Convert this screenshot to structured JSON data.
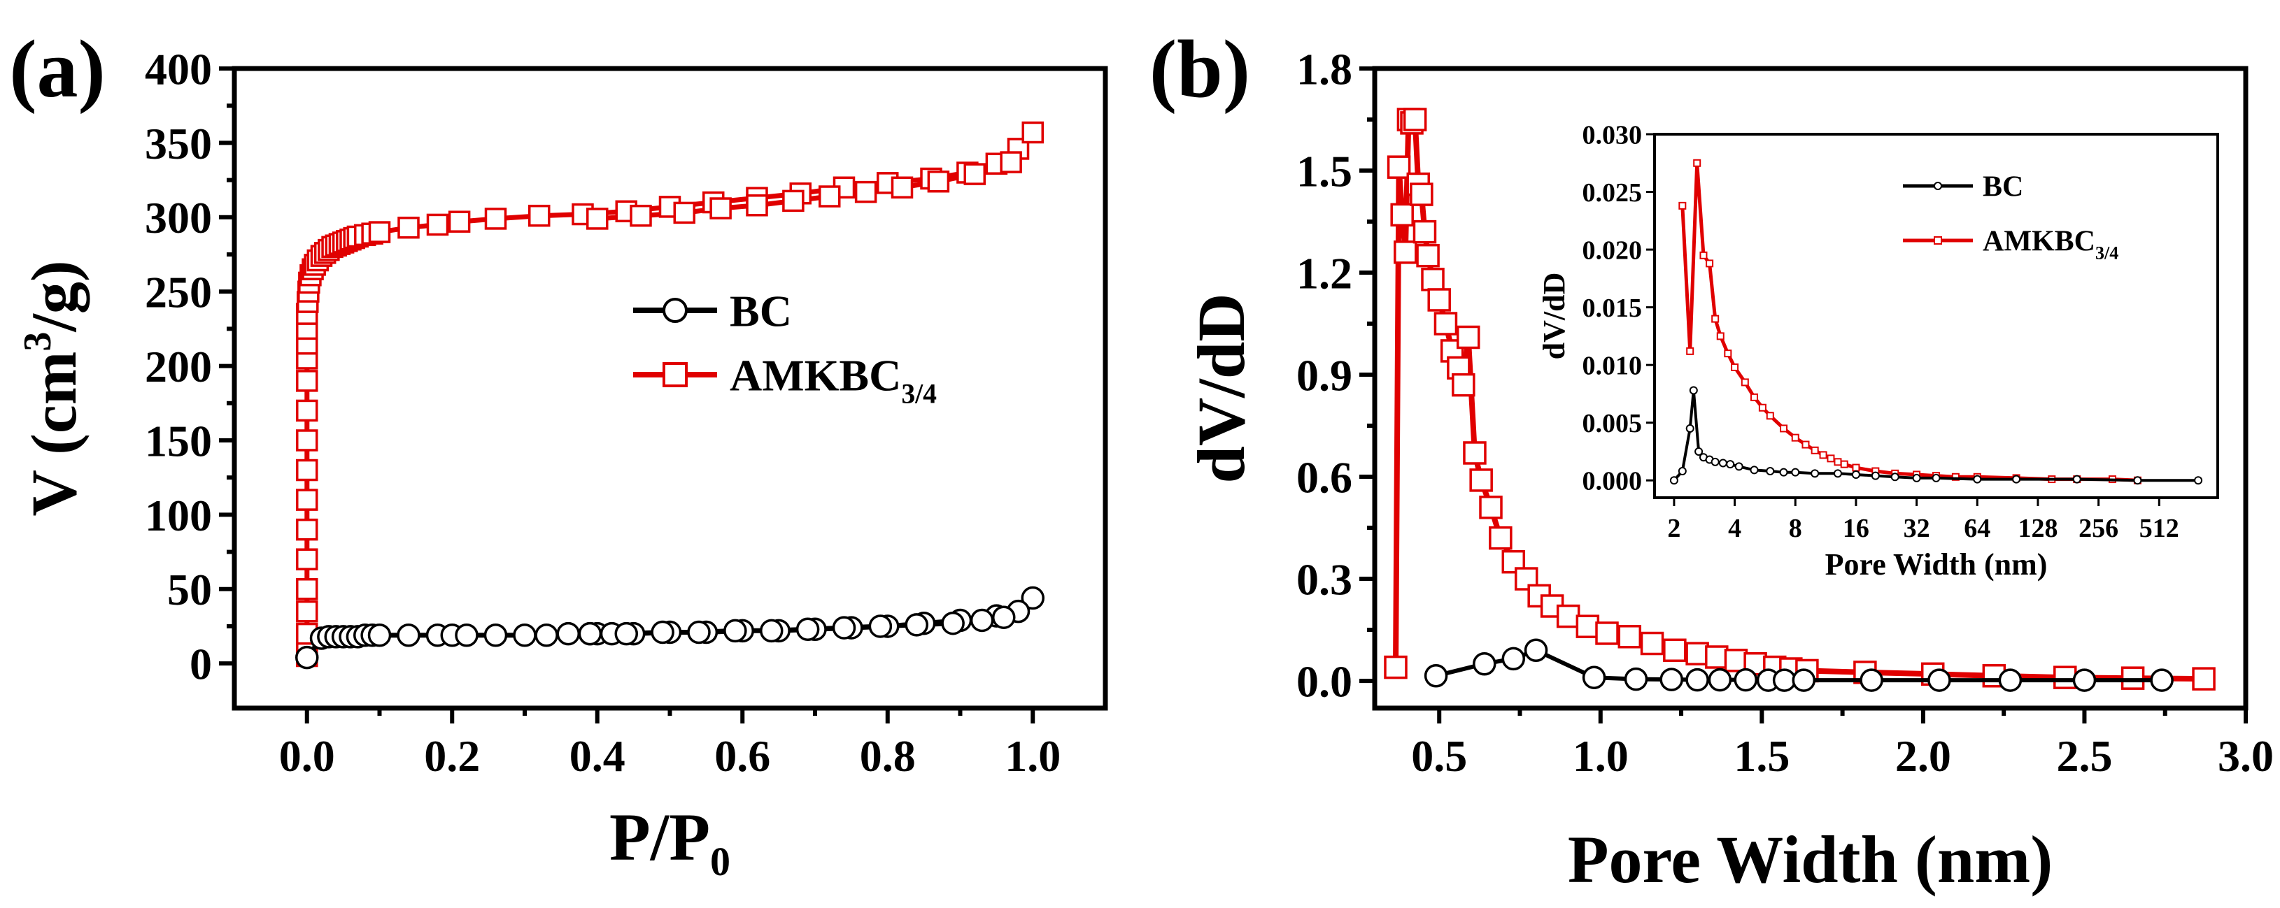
{
  "colors": {
    "bc": "#000000",
    "amkbc": "#e00000",
    "axis": "#000000",
    "background": "#ffffff"
  },
  "chart_data": [
    {
      "id": "a",
      "type": "scatter",
      "panel_label": "(a)",
      "xlabel": {
        "main": "P/P",
        "sub": "0"
      },
      "ylabel": {
        "main": "V (cm",
        "sup": "3",
        "tail": "/g)"
      },
      "xlim": [
        -0.1,
        1.1
      ],
      "ylim": [
        -30,
        400
      ],
      "xticks": [
        0.0,
        0.2,
        0.4,
        0.6,
        0.8,
        1.0
      ],
      "xtick_labels": [
        "0.0",
        "0.2",
        "0.4",
        "0.6",
        "0.8",
        "1.0"
      ],
      "yticks": [
        0,
        50,
        100,
        150,
        200,
        250,
        300,
        350,
        400
      ],
      "ytick_labels": [
        "0",
        "50",
        "100",
        "150",
        "200",
        "250",
        "300",
        "350",
        "400"
      ],
      "legend": {
        "position": "center-right",
        "entries": [
          {
            "label": "BC",
            "series": 0
          },
          {
            "label": "AMKBC",
            "sub": "3/4",
            "series": 1
          }
        ]
      },
      "series": [
        {
          "name": "BC",
          "marker": "circle",
          "color": "#000000",
          "x": [
            0.0,
            0.02,
            0.03,
            0.04,
            0.05,
            0.06,
            0.07,
            0.08,
            0.09,
            0.1,
            0.14,
            0.18,
            0.2,
            0.22,
            0.26,
            0.3,
            0.33,
            0.36,
            0.39,
            0.4,
            0.42,
            0.45,
            0.5,
            0.55,
            0.6,
            0.65,
            0.7,
            0.75,
            0.8,
            0.85,
            0.9,
            0.95,
            1.0,
            0.98,
            0.96,
            0.93,
            0.89,
            0.84,
            0.79,
            0.74,
            0.69,
            0.64,
            0.59,
            0.54,
            0.49,
            0.44,
            0.39
          ],
          "values": [
            4,
            17,
            18,
            18,
            18,
            18,
            18,
            19,
            19,
            19,
            19,
            19,
            19,
            19,
            19,
            19,
            19,
            20,
            20,
            20,
            20,
            20,
            21,
            21,
            22,
            22,
            23,
            24,
            25,
            27,
            29,
            32,
            44,
            35,
            31,
            29,
            27,
            26,
            25,
            24,
            23,
            22,
            22,
            21,
            21,
            20,
            20
          ]
        },
        {
          "name": "AMKBC3/4",
          "marker": "square",
          "color": "#e00000",
          "x": [
            0.0,
            0.0,
            0.0,
            0.0,
            0.0,
            0.0,
            0.0,
            0.0,
            0.0,
            0.0,
            0.0,
            0.0,
            0.0,
            0.0,
            0.0,
            0.0,
            0.001,
            0.002,
            0.003,
            0.005,
            0.008,
            0.011,
            0.015,
            0.02,
            0.025,
            0.03,
            0.035,
            0.04,
            0.045,
            0.05,
            0.055,
            0.06,
            0.065,
            0.07,
            0.08,
            0.09,
            0.1,
            0.14,
            0.18,
            0.21,
            0.26,
            0.32,
            0.38,
            0.44,
            0.5,
            0.56,
            0.62,
            0.68,
            0.74,
            0.8,
            0.86,
            0.91,
            0.95,
            0.98,
            1.0,
            0.97,
            0.92,
            0.87,
            0.82,
            0.77,
            0.72,
            0.67,
            0.62,
            0.57,
            0.52,
            0.46,
            0.4
          ],
          "values": [
            5,
            10,
            20,
            35,
            50,
            70,
            90,
            110,
            130,
            150,
            170,
            190,
            205,
            215,
            225,
            235,
            243,
            250,
            256,
            261,
            265,
            268,
            271,
            274,
            276,
            278,
            280,
            281,
            282,
            283,
            284,
            285,
            286,
            287,
            288,
            289,
            290,
            293,
            295,
            297,
            299,
            301,
            302,
            304,
            307,
            310,
            313,
            316,
            320,
            323,
            326,
            330,
            336,
            346,
            357,
            337,
            329,
            324,
            320,
            317,
            314,
            311,
            308,
            306,
            303,
            301,
            299
          ]
        }
      ]
    },
    {
      "id": "b",
      "type": "line",
      "panel_label": "(b)",
      "xlabel": "Pore Width (nm)",
      "ylabel": "dV/dD",
      "xlim": [
        0.3,
        3.0
      ],
      "ylim": [
        -0.08,
        1.8
      ],
      "xticks": [
        0.5,
        1.0,
        1.5,
        2.0,
        2.5,
        3.0
      ],
      "xtick_labels": [
        "0.5",
        "1.0",
        "1.5",
        "2.0",
        "2.5",
        "3.0"
      ],
      "yticks": [
        0.0,
        0.3,
        0.6,
        0.9,
        1.2,
        1.5,
        1.8
      ],
      "ytick_labels": [
        "0.0",
        "0.3",
        "0.6",
        "0.9",
        "1.2",
        "1.5",
        "1.8"
      ],
      "series": [
        {
          "name": "BC",
          "marker": "circle",
          "color": "#000000",
          "x": [
            0.49,
            0.64,
            0.73,
            0.8,
            0.98,
            1.11,
            1.22,
            1.3,
            1.37,
            1.45,
            1.52,
            1.57,
            1.63,
            1.84,
            2.05,
            2.27,
            2.5,
            2.74
          ],
          "values": [
            0.015,
            0.05,
            0.065,
            0.09,
            0.01,
            0.005,
            0.004,
            0.003,
            0.003,
            0.003,
            0.002,
            0.002,
            0.002,
            0.002,
            0.002,
            0.002,
            0.002,
            0.002
          ]
        },
        {
          "name": "AMKBC3/4",
          "marker": "square",
          "color": "#e00000",
          "x": [
            0.365,
            0.375,
            0.385,
            0.395,
            0.405,
            0.415,
            0.425,
            0.435,
            0.445,
            0.455,
            0.465,
            0.48,
            0.5,
            0.52,
            0.54,
            0.56,
            0.575,
            0.59,
            0.61,
            0.63,
            0.66,
            0.69,
            0.73,
            0.77,
            0.81,
            0.85,
            0.9,
            0.96,
            1.02,
            1.09,
            1.16,
            1.23,
            1.3,
            1.36,
            1.42,
            1.48,
            1.54,
            1.59,
            1.64,
            1.82,
            2.03,
            2.22,
            2.44,
            2.65,
            2.87
          ],
          "values": [
            0.04,
            1.51,
            1.37,
            1.26,
            1.65,
            1.64,
            1.65,
            1.46,
            1.43,
            1.32,
            1.25,
            1.18,
            1.12,
            1.05,
            0.97,
            0.92,
            0.87,
            1.01,
            0.67,
            0.59,
            0.51,
            0.42,
            0.35,
            0.3,
            0.25,
            0.22,
            0.19,
            0.16,
            0.14,
            0.13,
            0.11,
            0.09,
            0.08,
            0.07,
            0.06,
            0.05,
            0.04,
            0.035,
            0.03,
            0.025,
            0.02,
            0.015,
            0.01,
            0.008,
            0.006
          ]
        }
      ]
    },
    {
      "id": "b-inset",
      "type": "line",
      "xlabel": "Pore Width (nm)",
      "ylabel": "dV/dD",
      "xscale": "log2",
      "xlim": [
        1.6,
        1000
      ],
      "ylim": [
        -0.0015,
        0.03
      ],
      "xticks": [
        2,
        4,
        8,
        16,
        32,
        64,
        128,
        256,
        512
      ],
      "xtick_labels": [
        "2",
        "4",
        "8",
        "16",
        "32",
        "64",
        "128",
        "256",
        "512"
      ],
      "yticks": [
        0.0,
        0.005,
        0.01,
        0.015,
        0.02,
        0.025,
        0.03
      ],
      "ytick_labels": [
        "0.000",
        "0.005",
        "0.010",
        "0.015",
        "0.020",
        "0.025",
        "0.030"
      ],
      "legend": {
        "position": "top-left",
        "entries": [
          {
            "label": "BC",
            "series": 0
          },
          {
            "label": "AMKBC",
            "sub": "3/4",
            "series": 1
          }
        ]
      },
      "series": [
        {
          "name": "BC",
          "marker": "circle",
          "color": "#000000",
          "x": [
            2.0,
            2.2,
            2.4,
            2.5,
            2.65,
            2.8,
            3.0,
            3.2,
            3.5,
            3.8,
            4.2,
            5.0,
            6.0,
            7.0,
            8.0,
            10,
            13,
            16,
            20,
            25,
            32,
            40,
            64,
            100,
            200,
            400,
            800
          ],
          "values": [
            0.0,
            0.0008,
            0.0045,
            0.0078,
            0.0025,
            0.002,
            0.0018,
            0.0016,
            0.0015,
            0.0014,
            0.0012,
            0.0009,
            0.0008,
            0.0007,
            0.0007,
            0.0006,
            0.0006,
            0.0005,
            0.0004,
            0.0003,
            0.0002,
            0.0002,
            0.0001,
            0.0001,
            0.0001,
            0.0,
            0.0
          ]
        },
        {
          "name": "AMKBC3/4",
          "marker": "square",
          "color": "#e00000",
          "x": [
            2.2,
            2.4,
            2.6,
            2.8,
            3.0,
            3.2,
            3.4,
            3.7,
            4.0,
            4.5,
            5.0,
            5.5,
            6.0,
            7.0,
            8.0,
            9.0,
            10,
            11,
            12,
            13,
            14,
            16,
            20,
            25,
            32,
            40,
            50,
            64,
            100,
            150,
            200,
            300,
            400
          ],
          "values": [
            0.0238,
            0.0112,
            0.0275,
            0.0195,
            0.0188,
            0.014,
            0.0125,
            0.011,
            0.0098,
            0.0085,
            0.0072,
            0.0063,
            0.0056,
            0.0045,
            0.0037,
            0.0031,
            0.0026,
            0.0022,
            0.0019,
            0.0016,
            0.0014,
            0.0011,
            0.0008,
            0.0006,
            0.0005,
            0.0004,
            0.0003,
            0.0003,
            0.0002,
            0.0001,
            0.0001,
            0.0001,
            0.0
          ]
        }
      ]
    }
  ]
}
